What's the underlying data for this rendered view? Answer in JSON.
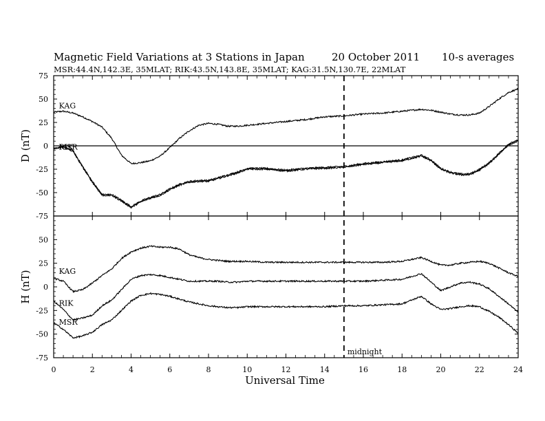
{
  "header": {
    "title": "Magnetic Field Variations at 3 Stations in Japan",
    "date": "20 October 2011",
    "averaging": "10-s averages",
    "stations": "MSR:44.4N,142.3E, 35MLAT;  RIK:43.5N,143.8E, 35MLAT;  KAG:31.5N,130.7E, 22MLAT"
  },
  "chart_data": {
    "type": "line",
    "xlabel": "Universal Time",
    "xlim": [
      0,
      24
    ],
    "xticks": [
      0,
      2,
      4,
      6,
      8,
      10,
      12,
      14,
      16,
      18,
      20,
      22,
      24
    ],
    "marker": {
      "x": 15,
      "label": "midnight"
    },
    "panels": [
      {
        "id": "D",
        "ylabel": "D (nT)",
        "ylim": [
          -75,
          75
        ],
        "yticks": [
          75,
          50,
          25,
          0,
          -25,
          -50,
          -75
        ],
        "zero_line": true,
        "station_labels": [
          {
            "text": "KAG",
            "x": 0.2,
            "y": 37
          },
          {
            "text": "MSR",
            "x": 0.2,
            "y": -7
          },
          {
            "text": "RIK",
            "x": 0.2,
            "y": -7
          }
        ],
        "series": [
          {
            "name": "KAG",
            "x": [
              0,
              0.5,
              1,
              1.5,
              2,
              2.5,
              3,
              3.5,
              4,
              4.5,
              5,
              5.5,
              6,
              6.5,
              7,
              7.5,
              8,
              8.5,
              9,
              9.5,
              10,
              11,
              12,
              13,
              14,
              15,
              16,
              17,
              18,
              19,
              19.5,
              20,
              20.5,
              21,
              21.5,
              22,
              22.5,
              23,
              23.5,
              24
            ],
            "values": [
              36,
              37,
              35,
              31,
              26,
              20,
              8,
              -10,
              -19,
              -18,
              -16,
              -11,
              -2,
              8,
              16,
              22,
              24,
              23,
              21,
              21,
              22,
              24,
              26,
              28,
              31,
              32,
              34,
              35,
              37,
              39,
              38,
              36,
              34,
              33,
              33,
              35,
              42,
              50,
              57,
              61
            ]
          },
          {
            "name": "MSR",
            "x": [
              0,
              0.5,
              1,
              1.5,
              2,
              2.5,
              3,
              3.5,
              4,
              4.5,
              5,
              5.5,
              6,
              6.5,
              7,
              7.5,
              8,
              8.5,
              9,
              9.5,
              10,
              11,
              12,
              13,
              14,
              15,
              16,
              17,
              18,
              19,
              19.5,
              20,
              20.5,
              21,
              21.5,
              22,
              22.5,
              23,
              23.5,
              24
            ],
            "values": [
              -3,
              -1,
              -5,
              -22,
              -38,
              -52,
              -52,
              -58,
              -65,
              -59,
              -55,
              -52,
              -46,
              -41,
              -38,
              -37,
              -37,
              -34,
              -31,
              -28,
              -24,
              -24,
              -26,
              -24,
              -23,
              -22,
              -19,
              -17,
              -15,
              -10,
              -15,
              -24,
              -28,
              -30,
              -30,
              -25,
              -18,
              -8,
              2,
              6
            ]
          },
          {
            "name": "RIK",
            "x": [
              0,
              0.5,
              1,
              1.5,
              2,
              2.5,
              3,
              3.5,
              4,
              4.5,
              5,
              5.5,
              6,
              6.5,
              7,
              7.5,
              8,
              8.5,
              9,
              9.5,
              10,
              11,
              12,
              13,
              14,
              15,
              16,
              17,
              18,
              19,
              19.5,
              20,
              20.5,
              21,
              21.5,
              22,
              22.5,
              23,
              23.5,
              24
            ],
            "values": [
              -3,
              -1,
              -6,
              -23,
              -39,
              -53,
              -53,
              -59,
              -66,
              -60,
              -56,
              -53,
              -47,
              -42,
              -39,
              -38,
              -38,
              -35,
              -32,
              -29,
              -25,
              -25,
              -27,
              -25,
              -24,
              -23,
              -20,
              -18,
              -16,
              -11,
              -16,
              -25,
              -29,
              -31,
              -31,
              -26,
              -19,
              -9,
              1,
              5
            ]
          }
        ]
      },
      {
        "id": "H",
        "ylabel": "H (nT)",
        "ylim": [
          -75,
          75
        ],
        "yticks": [
          75,
          50,
          25,
          0,
          -25,
          -50,
          -75
        ],
        "zero_line": false,
        "station_labels": [
          {
            "text": "KAG",
            "x": 0.2,
            "y": 11
          },
          {
            "text": "RIK",
            "x": 0.2,
            "y": -23
          },
          {
            "text": "MSR",
            "x": 0.2,
            "y": -43
          }
        ],
        "series": [
          {
            "name": "KAG",
            "x": [
              0,
              0.5,
              1,
              1.5,
              2,
              2.5,
              3,
              3.5,
              4,
              4.5,
              5,
              5.5,
              6,
              6.5,
              7,
              7.5,
              8,
              8.5,
              9,
              9.5,
              10,
              11,
              12,
              13,
              14,
              15,
              16,
              17,
              18,
              19,
              19.5,
              20,
              20.5,
              21,
              21.5,
              22,
              22.5,
              23,
              23.5,
              24
            ],
            "values": [
              9,
              6,
              -5,
              -3,
              4,
              12,
              19,
              30,
              37,
              41,
              43,
              42,
              42,
              40,
              34,
              31,
              29,
              28,
              27,
              27,
              27,
              26,
              26,
              26,
              26,
              26,
              26,
              26,
              27,
              31,
              27,
              23,
              23,
              25,
              26,
              27,
              25,
              20,
              15,
              11
            ]
          },
          {
            "name": "RIK",
            "x": [
              0,
              0.5,
              1,
              1.5,
              2,
              2.5,
              3,
              3.5,
              4,
              4.5,
              5,
              5.5,
              6,
              6.5,
              7,
              7.5,
              8,
              8.5,
              9,
              9.5,
              10,
              11,
              12,
              13,
              14,
              15,
              16,
              17,
              18,
              19,
              19.5,
              20,
              20.5,
              21,
              21.5,
              22,
              22.5,
              23,
              23.5,
              24
            ],
            "values": [
              -15,
              -24,
              -35,
              -33,
              -30,
              -20,
              -14,
              -3,
              8,
              12,
              13,
              12,
              10,
              8,
              6,
              6,
              6,
              6,
              5,
              5,
              6,
              6,
              6,
              6,
              6,
              6,
              6,
              7,
              8,
              14,
              5,
              -4,
              0,
              4,
              5,
              3,
              -2,
              -10,
              -18,
              -27
            ]
          },
          {
            "name": "MSR",
            "x": [
              0,
              0.5,
              1,
              1.5,
              2,
              2.5,
              3,
              3.5,
              4,
              4.5,
              5,
              5.5,
              6,
              6.5,
              7,
              7.5,
              8,
              8.5,
              9,
              9.5,
              10,
              11,
              12,
              13,
              14,
              15,
              16,
              17,
              18,
              19,
              19.5,
              20,
              20.5,
              21,
              21.5,
              22,
              22.5,
              23,
              23.5,
              24
            ],
            "values": [
              -38,
              -45,
              -54,
              -52,
              -48,
              -40,
              -35,
              -25,
              -15,
              -9,
              -7,
              -8,
              -10,
              -13,
              -16,
              -18,
              -20,
              -21,
              -22,
              -22,
              -21,
              -21,
              -21,
              -21,
              -21,
              -20,
              -20,
              -19,
              -18,
              -10,
              -18,
              -24,
              -23,
              -21,
              -20,
              -21,
              -26,
              -32,
              -40,
              -49
            ]
          }
        ]
      }
    ]
  }
}
